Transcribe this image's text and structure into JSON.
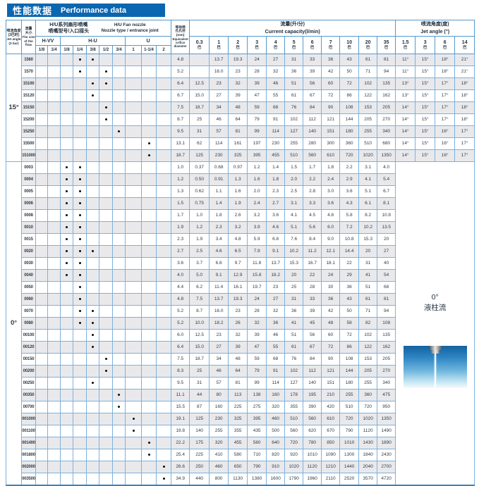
{
  "title": {
    "zh": "性能数据",
    "en": "Performance data"
  },
  "table": {
    "headers": {
      "angle_col": {
        "zh1": "喷流角度",
        "zh2": "(3巴时)",
        "en1": "Jet angle",
        "en2": "(3 bar)"
      },
      "flow_col": {
        "zh1": "流量",
        "zh2": "大小",
        "en1": "The size",
        "en2": "of the",
        "en3": "flow"
      },
      "joint_group": {
        "zh1": "H/U系列扇形喷嘴",
        "zh2": "喷嘴型号/入口接头",
        "en1": "H/U  Fan nozzle",
        "en2": "Nozzle type / entrance joint"
      },
      "orifice_col": {
        "zh1": "等效喷",
        "zh2": "孔孔径",
        "unit": "(mm)",
        "en1": "Equivalent",
        "en2": "orifice",
        "en3": "diameter"
      },
      "capacity_group": {
        "zh": "流量(升/分)",
        "en": "Current capacity(l/min)"
      },
      "jet_group": {
        "zh": "喷流角度(度)",
        "en": "Jet angle (°)"
      },
      "nozzle_types": [
        {
          "label": "H-VV",
          "span": 2
        },
        {
          "label": "H-U",
          "span": 5
        },
        {
          "label": "U",
          "span": 3
        }
      ],
      "joint_sizes": [
        "1/8",
        "1/4",
        "1/8",
        "1/4",
        "3/8",
        "1/2",
        "3/4",
        "1",
        "1-1/4",
        "2"
      ],
      "pressures": [
        "0.3",
        "1",
        "2",
        "3",
        "4",
        "5",
        "6",
        "7",
        "10",
        "20",
        "35"
      ],
      "pressure_unit": "巴",
      "jet_pressures": [
        "1.5",
        "3",
        "6",
        "14"
      ]
    },
    "groups": [
      {
        "angle": "15°",
        "rows": [
          {
            "code": "1560",
            "joints": [
              3,
              4
            ],
            "orifice": "4.8",
            "capacity": [
              "",
              "13.7",
              "19.3",
              "24",
              "27",
              "31",
              "33",
              "36",
              "43",
              "61",
              "81"
            ],
            "jet_angles": [
              "11°",
              "15°",
              "18°",
              "21°"
            ]
          },
          {
            "code": "1570",
            "joints": [
              3,
              5
            ],
            "orifice": "5.2",
            "capacity": [
              "",
              "16.0",
              "23",
              "28",
              "32",
              "36",
              "39",
              "42",
              "50",
              "71",
              "94"
            ],
            "jet_angles": [
              "11°",
              "15°",
              "18°",
              "21°"
            ]
          },
          {
            "code": "15100",
            "joints": [
              4,
              5
            ],
            "orifice": "6.4",
            "capacity": [
              "12.5",
              "23",
              "32",
              "39",
              "46",
              "51",
              "56",
              "60",
              "72",
              "102",
              "135"
            ],
            "jet_angles": [
              "13°",
              "15°",
              "17°",
              "18°"
            ]
          },
          {
            "code": "15120",
            "joints": [
              4
            ],
            "orifice": "6.7",
            "capacity": [
              "15.0",
              "27",
              "39",
              "47",
              "55",
              "61",
              "67",
              "72",
              "86",
              "122",
              "162"
            ],
            "jet_angles": [
              "13°",
              "15°",
              "17°",
              "18°"
            ]
          },
          {
            "code": "15150",
            "joints": [
              5
            ],
            "orifice": "7.5",
            "capacity": [
              "18.7",
              "34",
              "48",
              "59",
              "68",
              "76",
              "84",
              "90",
              "108",
              "153",
              "205"
            ],
            "jet_angles": [
              "14°",
              "15°",
              "17°",
              "18°"
            ]
          },
          {
            "code": "15200",
            "joints": [
              5
            ],
            "orifice": "8.7",
            "capacity": [
              "25",
              "46",
              "64",
              "79",
              "91",
              "102",
              "112",
              "121",
              "144",
              "205",
              "270"
            ],
            "jet_angles": [
              "14°",
              "15°",
              "17°",
              "18°"
            ]
          },
          {
            "code": "15250",
            "joints": [
              6
            ],
            "orifice": "9.5",
            "capacity": [
              "31",
              "57",
              "81",
              "99",
              "114",
              "127",
              "140",
              "151",
              "180",
              "255",
              "340"
            ],
            "jet_angles": [
              "14°",
              "15°",
              "16°",
              "17°"
            ]
          },
          {
            "code": "15500",
            "joints": [
              8
            ],
            "orifice": "13.1",
            "capacity": [
              "62",
              "114",
              "161",
              "197",
              "230",
              "255",
              "280",
              "300",
              "360",
              "510",
              "680"
            ],
            "jet_angles": [
              "14°",
              "15°",
              "16°",
              "17°"
            ]
          },
          {
            "code": "151000",
            "joints": [
              8
            ],
            "orifice": "18.7",
            "capacity": [
              "125",
              "230",
              "325",
              "395",
              "455",
              "510",
              "560",
              "610",
              "720",
              "1020",
              "1350"
            ],
            "jet_angles": [
              "14°",
              "15°",
              "16°",
              "17°"
            ]
          }
        ]
      },
      {
        "angle": "0°",
        "jet_cell": {
          "line1": "0°",
          "line2": "液柱流"
        },
        "rows": [
          {
            "code": "0003",
            "joints": [
              2,
              3
            ],
            "orifice": "1.0",
            "capacity": [
              "0.37",
              "0.68",
              "0.97",
              "1.2",
              "1.4",
              "1.5",
              "1.7",
              "1.8",
              "2.2",
              "3.1",
              "4.0"
            ]
          },
          {
            "code": "0004",
            "joints": [
              2,
              3
            ],
            "orifice": "1.2",
            "capacity": [
              "0.50",
              "0.91",
              "1.3",
              "1.6",
              "1.8",
              "2.0",
              "2.2",
              "2.4",
              "2.9",
              "4.1",
              "5.4"
            ]
          },
          {
            "code": "0005",
            "joints": [
              2,
              3
            ],
            "orifice": "1.3",
            "capacity": [
              "0.62",
              "1.1",
              "1.6",
              "2.0",
              "2.3",
              "2.5",
              "2.8",
              "3.0",
              "3.6",
              "5.1",
              "6.7"
            ]
          },
          {
            "code": "0006",
            "joints": [
              2,
              3
            ],
            "orifice": "1.5",
            "capacity": [
              "0.75",
              "1.4",
              "1.9",
              "2.4",
              "2.7",
              "3.1",
              "3.3",
              "3.6",
              "4.3",
              "6.1",
              "8.1"
            ]
          },
          {
            "code": "0008",
            "joints": [
              2,
              3
            ],
            "orifice": "1.7",
            "capacity": [
              "1.0",
              "1.8",
              "2.6",
              "3.2",
              "3.6",
              "4.1",
              "4.5",
              "4.8",
              "5.8",
              "8.2",
              "10.8"
            ]
          },
          {
            "code": "0010",
            "joints": [
              2,
              3
            ],
            "orifice": "1.9",
            "capacity": [
              "1.2",
              "2.3",
              "3.2",
              "3.9",
              "4.6",
              "5.1",
              "5.6",
              "6.0",
              "7.2",
              "10.2",
              "13.5"
            ]
          },
          {
            "code": "0015",
            "joints": [
              2,
              3
            ],
            "orifice": "2.3",
            "capacity": [
              "1.9",
              "3.4",
              "4.8",
              "5.9",
              "6.8",
              "7.6",
              "8.4",
              "9.0",
              "10.8",
              "15.3",
              "20"
            ]
          },
          {
            "code": "0020",
            "joints": [
              2,
              3,
              4
            ],
            "orifice": "2.7",
            "capacity": [
              "2.5",
              "4.6",
              "6.5",
              "7.9",
              "9.1",
              "10.2",
              "11.2",
              "12.1",
              "14.4",
              "20",
              "27"
            ]
          },
          {
            "code": "0030",
            "joints": [
              2,
              3
            ],
            "orifice": "3.6",
            "capacity": [
              "3.7",
              "6.8",
              "9.7",
              "11.8",
              "13.7",
              "15.3",
              "16.7",
              "18.1",
              "22",
              "31",
              "40"
            ]
          },
          {
            "code": "0040",
            "joints": [
              2,
              3
            ],
            "orifice": "4.0",
            "capacity": [
              "5.0",
              "9.1",
              "12.9",
              "15.8",
              "18.2",
              "20",
              "22",
              "24",
              "29",
              "41",
              "54"
            ]
          },
          {
            "code": "0050",
            "joints": [
              3
            ],
            "orifice": "4.4",
            "capacity": [
              "6.2",
              "11.4",
              "16.1",
              "19.7",
              "23",
              "25",
              "28",
              "30",
              "36",
              "51",
              "68"
            ]
          },
          {
            "code": "0060",
            "joints": [
              3
            ],
            "orifice": "4.8",
            "capacity": [
              "7.5",
              "13.7",
              "19.3",
              "24",
              "27",
              "31",
              "33",
              "36",
              "43",
              "61",
              "81"
            ]
          },
          {
            "code": "0070",
            "joints": [
              3,
              4
            ],
            "orifice": "5.2",
            "capacity": [
              "8.7",
              "16.0",
              "23",
              "28",
              "32",
              "36",
              "39",
              "42",
              "50",
              "71",
              "94"
            ]
          },
          {
            "code": "0080",
            "joints": [
              3,
              4
            ],
            "orifice": "5.2",
            "capacity": [
              "10.0",
              "18.2",
              "26",
              "32",
              "36",
              "41",
              "45",
              "48",
              "58",
              "82",
              "108"
            ]
          },
          {
            "code": "00100",
            "joints": [
              4
            ],
            "orifice": "6.0",
            "capacity": [
              "12.5",
              "23",
              "32",
              "39",
              "46",
              "51",
              "56",
              "60",
              "72",
              "102",
              "135"
            ]
          },
          {
            "code": "00120",
            "joints": [
              4
            ],
            "orifice": "6.4",
            "capacity": [
              "15.0",
              "27",
              "39",
              "47",
              "55",
              "61",
              "67",
              "72",
              "86",
              "122",
              "162"
            ]
          },
          {
            "code": "00150",
            "joints": [
              5
            ],
            "orifice": "7.5",
            "capacity": [
              "18.7",
              "34",
              "48",
              "59",
              "68",
              "76",
              "84",
              "90",
              "108",
              "153",
              "205"
            ]
          },
          {
            "code": "00200",
            "joints": [
              5
            ],
            "orifice": "8.3",
            "capacity": [
              "25",
              "46",
              "64",
              "79",
              "91",
              "102",
              "112",
              "121",
              "144",
              "205",
              "270"
            ]
          },
          {
            "code": "00250",
            "joints": [
              4
            ],
            "orifice": "9.5",
            "capacity": [
              "31",
              "57",
              "81",
              "99",
              "114",
              "127",
              "140",
              "151",
              "180",
              "255",
              "340"
            ]
          },
          {
            "code": "00350",
            "joints": [
              6
            ],
            "orifice": "11.1",
            "capacity": [
              "44",
              "80",
              "113",
              "138",
              "160",
              "178",
              "195",
              "210",
              "255",
              "360",
              "475"
            ]
          },
          {
            "code": "00700",
            "joints": [
              6
            ],
            "orifice": "15.5",
            "capacity": [
              "87",
              "160",
              "225",
              "275",
              "320",
              "355",
              "390",
              "420",
              "510",
              "720",
              "950"
            ]
          },
          {
            "code": "001000",
            "joints": [
              7
            ],
            "orifice": "19.1",
            "capacity": [
              "125",
              "230",
              "325",
              "395",
              "460",
              "510",
              "560",
              "610",
              "720",
              "1020",
              "1350"
            ]
          },
          {
            "code": "001100",
            "joints": [
              7
            ],
            "orifice": "19.8",
            "capacity": [
              "140",
              "255",
              "355",
              "435",
              "500",
              "560",
              "620",
              "670",
              "790",
              "1120",
              "1490"
            ]
          },
          {
            "code": "001400",
            "joints": [
              8
            ],
            "orifice": "22.2",
            "capacity": [
              "175",
              "320",
              "455",
              "560",
              "640",
              "720",
              "780",
              "850",
              "1010",
              "1430",
              "1890"
            ]
          },
          {
            "code": "001800",
            "joints": [
              8
            ],
            "orifice": "25.4",
            "capacity": [
              "225",
              "410",
              "580",
              "710",
              "820",
              "920",
              "1010",
              "1090",
              "1300",
              "1840",
              "2430"
            ]
          },
          {
            "code": "002000",
            "joints": [
              9
            ],
            "orifice": "26.6",
            "capacity": [
              "250",
              "460",
              "650",
              "790",
              "910",
              "1020",
              "1120",
              "1210",
              "1440",
              "2040",
              "2700"
            ]
          },
          {
            "code": "003500",
            "joints": [
              9
            ],
            "orifice": "34.9",
            "capacity": [
              "440",
              "800",
              "1130",
              "1380",
              "1600",
              "1790",
              "1960",
              "2110",
              "2520",
              "3570",
              "4720"
            ]
          }
        ]
      }
    ]
  }
}
